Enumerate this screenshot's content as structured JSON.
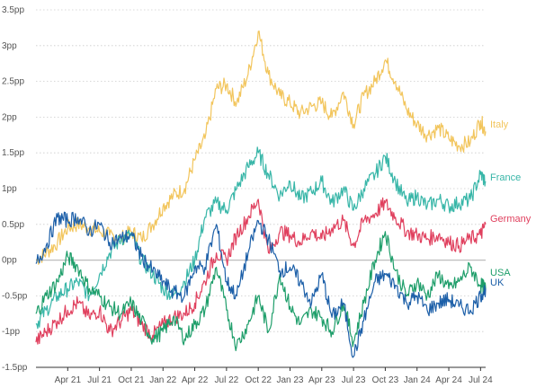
{
  "chart_data": {
    "type": "line",
    "title": "",
    "xlabel": "",
    "ylabel": "",
    "ylim": [
      -1.5,
      3.5
    ],
    "grid": true,
    "y_ticks": [
      "-1.5pp",
      "-1pp",
      "-0.5pp",
      "0pp",
      "0.5pp",
      "1pp",
      "1.5pp",
      "2pp",
      "2.5pp",
      "3pp",
      "3.5pp"
    ],
    "y_tick_values": [
      -1.5,
      -1,
      -0.5,
      0,
      0.5,
      1,
      1.5,
      2,
      2.5,
      3,
      3.5
    ],
    "x_ticks": [
      "Apr 21",
      "Jul 21",
      "Oct 21",
      "Jan 22",
      "Apr 22",
      "Jul 22",
      "Oct 22",
      "Jan 23",
      "Apr 23",
      "Jul 23",
      "Oct 23",
      "Jan 24",
      "Apr 24",
      "Jul 24"
    ],
    "x_tick_values": [
      2021.25,
      2021.5,
      2021.75,
      2022.0,
      2022.25,
      2022.5,
      2022.75,
      2023.0,
      2023.25,
      2023.5,
      2023.75,
      2024.0,
      2024.25,
      2024.5
    ],
    "xlim": [
      2021.0,
      2024.54
    ],
    "series": [
      {
        "name": "Italy",
        "color": "#f2c55c",
        "x": [
          2021.0,
          2021.08,
          2021.17,
          2021.25,
          2021.33,
          2021.42,
          2021.5,
          2021.58,
          2021.67,
          2021.75,
          2021.83,
          2021.92,
          2022.0,
          2022.08,
          2022.17,
          2022.25,
          2022.33,
          2022.42,
          2022.5,
          2022.58,
          2022.67,
          2022.75,
          2022.83,
          2022.92,
          2023.0,
          2023.08,
          2023.17,
          2023.25,
          2023.33,
          2023.42,
          2023.5,
          2023.58,
          2023.67,
          2023.75,
          2023.83,
          2023.92,
          2024.0,
          2024.08,
          2024.17,
          2024.25,
          2024.33,
          2024.42,
          2024.5,
          2024.54
        ],
        "values": [
          0.0,
          0.1,
          0.25,
          0.45,
          0.5,
          0.45,
          0.4,
          0.35,
          0.3,
          0.4,
          0.3,
          0.5,
          0.75,
          0.9,
          1.0,
          1.4,
          1.7,
          2.4,
          2.45,
          2.2,
          2.6,
          3.2,
          2.6,
          2.3,
          2.2,
          2.05,
          2.15,
          2.2,
          2.0,
          2.35,
          1.9,
          2.3,
          2.5,
          2.8,
          2.5,
          2.1,
          1.9,
          1.75,
          1.85,
          1.7,
          1.6,
          1.65,
          1.95,
          1.8
        ]
      },
      {
        "name": "France",
        "color": "#38b6a8",
        "x": [
          2021.0,
          2021.08,
          2021.17,
          2021.25,
          2021.33,
          2021.42,
          2021.5,
          2021.58,
          2021.67,
          2021.75,
          2021.83,
          2021.92,
          2022.0,
          2022.08,
          2022.17,
          2022.25,
          2022.33,
          2022.42,
          2022.5,
          2022.58,
          2022.67,
          2022.75,
          2022.83,
          2022.92,
          2023.0,
          2023.08,
          2023.17,
          2023.25,
          2023.33,
          2023.42,
          2023.5,
          2023.58,
          2023.67,
          2023.75,
          2023.83,
          2023.92,
          2024.0,
          2024.08,
          2024.17,
          2024.25,
          2024.33,
          2024.42,
          2024.5,
          2024.54
        ],
        "values": [
          -0.9,
          -0.7,
          -0.5,
          -0.4,
          -0.3,
          -0.5,
          -0.2,
          0.1,
          0.3,
          0.35,
          0.0,
          -0.2,
          -0.4,
          -0.5,
          -0.3,
          0.0,
          0.6,
          0.8,
          0.7,
          1.0,
          1.3,
          1.5,
          1.2,
          0.9,
          1.1,
          0.85,
          0.95,
          1.1,
          0.8,
          1.0,
          0.7,
          1.0,
          1.2,
          1.45,
          1.1,
          0.8,
          0.9,
          0.75,
          0.85,
          0.75,
          0.8,
          0.85,
          1.2,
          1.1
        ]
      },
      {
        "name": "Germany",
        "color": "#e0405e",
        "x": [
          2021.0,
          2021.08,
          2021.17,
          2021.25,
          2021.33,
          2021.42,
          2021.5,
          2021.58,
          2021.67,
          2021.75,
          2021.83,
          2021.92,
          2022.0,
          2022.08,
          2022.17,
          2022.25,
          2022.33,
          2022.42,
          2022.5,
          2022.58,
          2022.67,
          2022.75,
          2022.83,
          2022.92,
          2023.0,
          2023.08,
          2023.17,
          2023.25,
          2023.33,
          2023.42,
          2023.5,
          2023.58,
          2023.67,
          2023.75,
          2023.83,
          2023.92,
          2024.0,
          2024.08,
          2024.17,
          2024.25,
          2024.33,
          2024.42,
          2024.5,
          2024.54
        ],
        "values": [
          -1.15,
          -1.0,
          -0.85,
          -0.7,
          -0.6,
          -0.8,
          -0.7,
          -1.0,
          -0.85,
          -0.7,
          -0.9,
          -1.05,
          -0.9,
          -0.8,
          -0.75,
          -0.6,
          -0.3,
          0.1,
          0.0,
          0.35,
          0.6,
          0.85,
          0.1,
          0.4,
          0.35,
          0.25,
          0.4,
          0.3,
          0.45,
          0.55,
          0.2,
          0.55,
          0.65,
          0.8,
          0.6,
          0.4,
          0.35,
          0.3,
          0.35,
          0.25,
          0.2,
          0.3,
          0.35,
          0.5
        ]
      },
      {
        "name": "USA",
        "color": "#1e9e6a",
        "x": [
          2021.0,
          2021.08,
          2021.17,
          2021.25,
          2021.33,
          2021.42,
          2021.5,
          2021.58,
          2021.67,
          2021.75,
          2021.83,
          2021.92,
          2022.0,
          2022.08,
          2022.17,
          2022.25,
          2022.33,
          2022.42,
          2022.5,
          2022.58,
          2022.67,
          2022.75,
          2022.83,
          2022.92,
          2023.0,
          2023.08,
          2023.17,
          2023.25,
          2023.33,
          2023.42,
          2023.5,
          2023.58,
          2023.67,
          2023.75,
          2023.83,
          2023.92,
          2024.0,
          2024.08,
          2024.17,
          2024.25,
          2024.33,
          2024.42,
          2024.5,
          2024.54
        ],
        "values": [
          -0.75,
          -0.5,
          -0.3,
          0.05,
          -0.1,
          -0.4,
          -0.5,
          -0.65,
          -0.75,
          -0.6,
          -0.85,
          -1.1,
          -1.0,
          -0.8,
          -1.1,
          -0.9,
          -0.7,
          -0.1,
          -0.7,
          -1.2,
          -0.9,
          -0.5,
          -1.0,
          -0.2,
          -0.65,
          -0.9,
          -0.7,
          -0.8,
          -1.0,
          -0.6,
          -1.15,
          -0.6,
          0.0,
          0.4,
          -0.15,
          -0.5,
          -0.3,
          -0.5,
          -0.2,
          -0.4,
          -0.3,
          -0.1,
          -0.35,
          -0.4
        ]
      },
      {
        "name": "UK",
        "color": "#1c5fa8",
        "x": [
          2021.0,
          2021.08,
          2021.17,
          2021.25,
          2021.33,
          2021.42,
          2021.5,
          2021.58,
          2021.67,
          2021.75,
          2021.83,
          2021.92,
          2022.0,
          2022.08,
          2022.17,
          2022.25,
          2022.33,
          2022.42,
          2022.5,
          2022.58,
          2022.67,
          2022.75,
          2022.83,
          2022.92,
          2023.0,
          2023.08,
          2023.17,
          2023.25,
          2023.33,
          2023.42,
          2023.5,
          2023.58,
          2023.67,
          2023.75,
          2023.83,
          2023.92,
          2024.0,
          2024.08,
          2024.17,
          2024.25,
          2024.33,
          2024.42,
          2024.5,
          2024.54
        ],
        "values": [
          -0.05,
          0.2,
          0.6,
          0.55,
          0.6,
          0.4,
          0.5,
          0.25,
          0.3,
          0.35,
          0.05,
          -0.15,
          -0.3,
          -0.45,
          -0.5,
          -0.1,
          -0.1,
          0.5,
          -0.3,
          -0.5,
          0.1,
          0.55,
          0.3,
          -0.15,
          -0.1,
          -0.3,
          -0.6,
          -0.2,
          -0.8,
          -0.6,
          -1.35,
          -0.85,
          -0.3,
          -0.2,
          -0.35,
          -0.6,
          -0.5,
          -0.7,
          -0.6,
          -0.55,
          -0.65,
          -0.7,
          -0.5,
          -0.4
        ]
      }
    ]
  }
}
